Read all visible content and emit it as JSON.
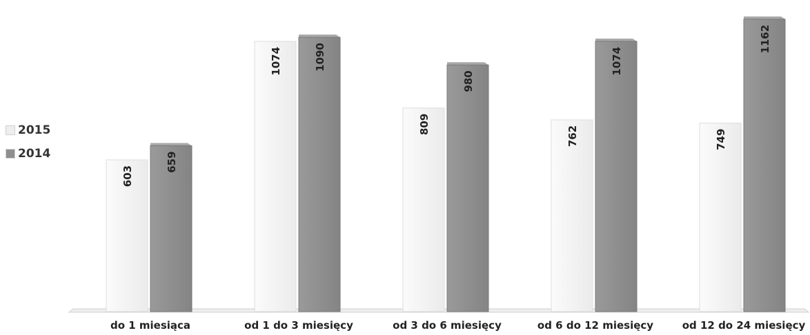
{
  "chart_data": {
    "type": "bar",
    "categories": [
      "do 1 miesiąca",
      "od 1 do 3 miesięcy",
      "od 3 do 6 miesięcy",
      "od 6 do 12 miesięcy",
      "od 12 do 24 miesięcy"
    ],
    "series": [
      {
        "name": "2015",
        "values": [
          603,
          1074,
          809,
          762,
          749
        ],
        "color": "#f1f1f1"
      },
      {
        "name": "2014",
        "values": [
          659,
          1090,
          980,
          1074,
          1162
        ],
        "color": "#8e8e8e"
      }
    ],
    "ylim": [
      0,
      1200
    ],
    "grid": false,
    "legend": "left",
    "data_labels": "rotated-inside-top"
  }
}
